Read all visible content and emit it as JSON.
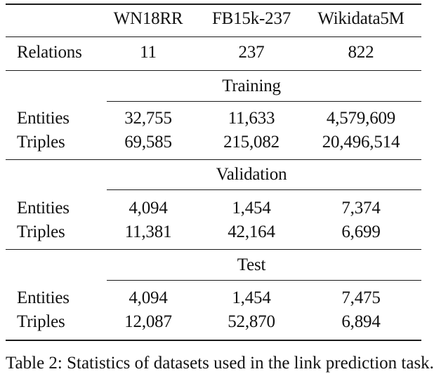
{
  "table": {
    "header": {
      "columns": [
        "WN18RR",
        "FB15k-237",
        "Wikidata5M"
      ]
    },
    "relations": {
      "label": "Relations",
      "values": [
        "11",
        "237",
        "822"
      ]
    },
    "sections": [
      {
        "title": "Training",
        "rows": [
          {
            "label": "Entities",
            "values": [
              "32,755",
              "11,633",
              "4,579,609"
            ]
          },
          {
            "label": "Triples",
            "values": [
              "69,585",
              "215,082",
              "20,496,514"
            ]
          }
        ]
      },
      {
        "title": "Validation",
        "rows": [
          {
            "label": "Entities",
            "values": [
              "4,094",
              "1,454",
              "7,374"
            ]
          },
          {
            "label": "Triples",
            "values": [
              "11,381",
              "42,164",
              "6,699"
            ]
          }
        ]
      },
      {
        "title": "Test",
        "rows": [
          {
            "label": "Entities",
            "values": [
              "4,094",
              "1,454",
              "7,475"
            ]
          },
          {
            "label": "Triples",
            "values": [
              "12,087",
              "52,870",
              "6,894"
            ]
          }
        ]
      }
    ]
  },
  "caption": {
    "text": "Table 2: Statistics of datasets used in the link prediction task."
  }
}
